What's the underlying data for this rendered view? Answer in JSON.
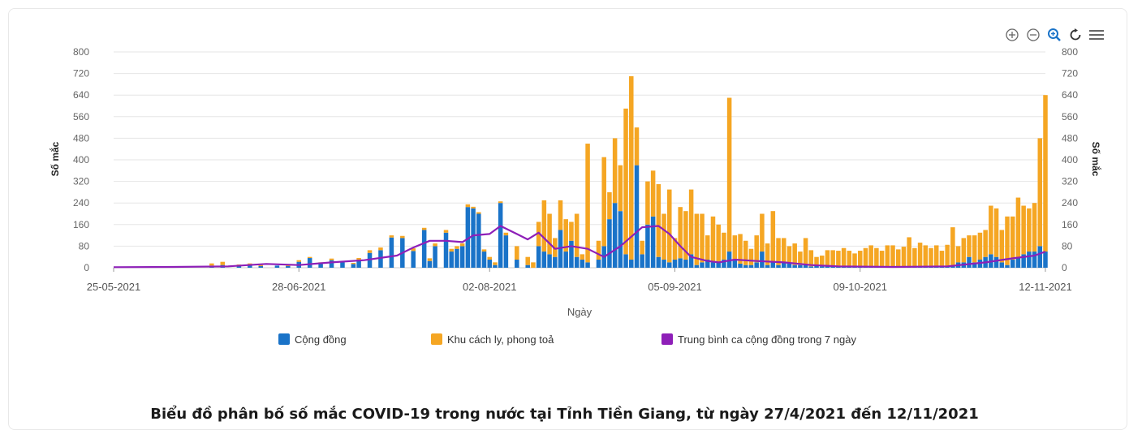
{
  "caption": "Biểu đồ phân bố số mắc COVID-19 trong nước tại Tỉnh Tiền Giang, từ ngày 27/4/2021 đến 12/11/2021",
  "toolbar": {
    "icons": [
      "zoom-in-icon",
      "zoom-out-icon",
      "magnifier-zoom-icon",
      "reset-icon",
      "menu-icon"
    ]
  },
  "chart_data": {
    "type": "bar",
    "x_label": "Ngày",
    "y_label_left": "Số mắc",
    "y_label_right": "Số mắc",
    "ylim": [
      0,
      800
    ],
    "y_ticks": [
      0,
      80,
      160,
      240,
      320,
      400,
      480,
      560,
      640,
      720,
      800
    ],
    "x_range": [
      "2021-05-25",
      "2021-11-12"
    ],
    "x_ticks": [
      "25-05-2021",
      "28-06-2021",
      "02-08-2021",
      "05-09-2021",
      "09-10-2021",
      "12-11-2021"
    ],
    "grid": true,
    "legend_position": "bottom",
    "series": [
      {
        "name": "Cộng đồng",
        "kind": "bar",
        "stack": "cases",
        "color": "#1a73c8"
      },
      {
        "name": "Khu cách ly, phong toả",
        "kind": "bar",
        "stack": "cases",
        "color": "#f5a623"
      },
      {
        "name": "Trung bình ca cộng đồng trong 7 ngày",
        "kind": "line",
        "color": "#8e1fb8"
      }
    ],
    "bars": [
      [
        "2021-06-12",
        8,
        8
      ],
      [
        "2021-06-14",
        10,
        12
      ],
      [
        "2021-06-17",
        6,
        6
      ],
      [
        "2021-06-19",
        10,
        6
      ],
      [
        "2021-06-21",
        6,
        4
      ],
      [
        "2021-06-24",
        8,
        0
      ],
      [
        "2021-06-26",
        6,
        4
      ],
      [
        "2021-06-28",
        22,
        6
      ],
      [
        "2021-06-30",
        36,
        4
      ],
      [
        "2021-07-02",
        14,
        6
      ],
      [
        "2021-07-04",
        28,
        6
      ],
      [
        "2021-07-06",
        20,
        4
      ],
      [
        "2021-07-08",
        14,
        4
      ],
      [
        "2021-07-09",
        30,
        6
      ],
      [
        "2021-07-11",
        55,
        10
      ],
      [
        "2021-07-13",
        65,
        10
      ],
      [
        "2021-07-15",
        112,
        8
      ],
      [
        "2021-07-17",
        110,
        8
      ],
      [
        "2021-07-19",
        62,
        10
      ],
      [
        "2021-07-21",
        140,
        8
      ],
      [
        "2021-07-22",
        25,
        10
      ],
      [
        "2021-07-23",
        80,
        10
      ],
      [
        "2021-07-25",
        130,
        10
      ],
      [
        "2021-07-26",
        60,
        10
      ],
      [
        "2021-07-27",
        70,
        10
      ],
      [
        "2021-07-28",
        80,
        10
      ],
      [
        "2021-07-29",
        225,
        10
      ],
      [
        "2021-07-30",
        220,
        6
      ],
      [
        "2021-07-31",
        200,
        6
      ],
      [
        "2021-08-01",
        60,
        8
      ],
      [
        "2021-08-02",
        30,
        10
      ],
      [
        "2021-08-03",
        10,
        10
      ],
      [
        "2021-08-04",
        240,
        6
      ],
      [
        "2021-08-05",
        120,
        10
      ],
      [
        "2021-08-07",
        30,
        50
      ],
      [
        "2021-08-09",
        10,
        30
      ],
      [
        "2021-08-10",
        0,
        20
      ],
      [
        "2021-08-11",
        80,
        90
      ],
      [
        "2021-08-12",
        60,
        190
      ],
      [
        "2021-08-13",
        50,
        150
      ],
      [
        "2021-08-14",
        40,
        70
      ],
      [
        "2021-08-15",
        140,
        110
      ],
      [
        "2021-08-16",
        60,
        120
      ],
      [
        "2021-08-17",
        100,
        70
      ],
      [
        "2021-08-18",
        40,
        160
      ],
      [
        "2021-08-19",
        30,
        20
      ],
      [
        "2021-08-20",
        20,
        440
      ],
      [
        "2021-08-22",
        30,
        70
      ],
      [
        "2021-08-23",
        80,
        330
      ],
      [
        "2021-08-24",
        180,
        100
      ],
      [
        "2021-08-25",
        240,
        240
      ],
      [
        "2021-08-26",
        210,
        170
      ],
      [
        "2021-08-27",
        50,
        540
      ],
      [
        "2021-08-28",
        30,
        680
      ],
      [
        "2021-08-29",
        380,
        140
      ],
      [
        "2021-08-30",
        50,
        50
      ],
      [
        "2021-08-31",
        160,
        160
      ],
      [
        "2021-09-01",
        190,
        170
      ],
      [
        "2021-09-02",
        40,
        270
      ],
      [
        "2021-09-03",
        30,
        170
      ],
      [
        "2021-09-04",
        20,
        270
      ],
      [
        "2021-09-05",
        30,
        80
      ],
      [
        "2021-09-06",
        35,
        190
      ],
      [
        "2021-09-07",
        30,
        180
      ],
      [
        "2021-09-08",
        50,
        240
      ],
      [
        "2021-09-09",
        10,
        190
      ],
      [
        "2021-09-10",
        20,
        180
      ],
      [
        "2021-09-11",
        30,
        90
      ],
      [
        "2021-09-12",
        20,
        170
      ],
      [
        "2021-09-13",
        20,
        140
      ],
      [
        "2021-09-14",
        30,
        100
      ],
      [
        "2021-09-15",
        60,
        570
      ],
      [
        "2021-09-16",
        30,
        90
      ],
      [
        "2021-09-17",
        15,
        110
      ],
      [
        "2021-09-18",
        10,
        90
      ],
      [
        "2021-09-19",
        10,
        60
      ],
      [
        "2021-09-20",
        20,
        100
      ],
      [
        "2021-09-21",
        60,
        140
      ],
      [
        "2021-09-22",
        10,
        80
      ],
      [
        "2021-09-23",
        20,
        190
      ],
      [
        "2021-09-24",
        10,
        100
      ],
      [
        "2021-09-25",
        20,
        90
      ],
      [
        "2021-09-26",
        20,
        60
      ],
      [
        "2021-09-27",
        10,
        80
      ],
      [
        "2021-09-28",
        10,
        50
      ],
      [
        "2021-09-29",
        10,
        100
      ],
      [
        "2021-09-30",
        5,
        60
      ],
      [
        "2021-10-01",
        10,
        30
      ],
      [
        "2021-10-02",
        5,
        40
      ],
      [
        "2021-10-03",
        5,
        60
      ],
      [
        "2021-10-04",
        5,
        60
      ],
      [
        "2021-10-05",
        3,
        60
      ],
      [
        "2021-10-06",
        3,
        70
      ],
      [
        "2021-10-07",
        3,
        60
      ],
      [
        "2021-10-08",
        3,
        50
      ],
      [
        "2021-10-09",
        3,
        60
      ],
      [
        "2021-10-10",
        3,
        70
      ],
      [
        "2021-10-11",
        3,
        80
      ],
      [
        "2021-10-12",
        3,
        70
      ],
      [
        "2021-10-13",
        3,
        60
      ],
      [
        "2021-10-14",
        3,
        80
      ],
      [
        "2021-10-15",
        3,
        80
      ],
      [
        "2021-10-16",
        3,
        65
      ],
      [
        "2021-10-17",
        3,
        75
      ],
      [
        "2021-10-18",
        3,
        110
      ],
      [
        "2021-10-19",
        3,
        70
      ],
      [
        "2021-10-20",
        3,
        90
      ],
      [
        "2021-10-21",
        3,
        80
      ],
      [
        "2021-10-22",
        3,
        70
      ],
      [
        "2021-10-23",
        3,
        80
      ],
      [
        "2021-10-24",
        3,
        60
      ],
      [
        "2021-10-25",
        5,
        80
      ],
      [
        "2021-10-26",
        10,
        140
      ],
      [
        "2021-10-27",
        20,
        60
      ],
      [
        "2021-10-28",
        20,
        90
      ],
      [
        "2021-10-29",
        40,
        80
      ],
      [
        "2021-10-30",
        20,
        100
      ],
      [
        "2021-10-31",
        30,
        100
      ],
      [
        "2021-11-01",
        40,
        100
      ],
      [
        "2021-11-02",
        50,
        180
      ],
      [
        "2021-11-03",
        40,
        180
      ],
      [
        "2021-11-04",
        20,
        120
      ],
      [
        "2021-11-05",
        10,
        180
      ],
      [
        "2021-11-06",
        30,
        160
      ],
      [
        "2021-11-07",
        40,
        220
      ],
      [
        "2021-11-08",
        50,
        180
      ],
      [
        "2021-11-09",
        60,
        160
      ],
      [
        "2021-11-10",
        60,
        180
      ],
      [
        "2021-11-11",
        80,
        400
      ],
      [
        "2021-11-12",
        60,
        580
      ]
    ],
    "avg_line": [
      [
        "2021-05-25",
        2
      ],
      [
        "2021-06-05",
        3
      ],
      [
        "2021-06-15",
        5
      ],
      [
        "2021-06-22",
        14
      ],
      [
        "2021-06-28",
        10
      ],
      [
        "2021-07-04",
        20
      ],
      [
        "2021-07-10",
        28
      ],
      [
        "2021-07-16",
        45
      ],
      [
        "2021-07-19",
        75
      ],
      [
        "2021-07-22",
        100
      ],
      [
        "2021-07-25",
        100
      ],
      [
        "2021-07-28",
        95
      ],
      [
        "2021-07-30",
        120
      ],
      [
        "2021-08-02",
        125
      ],
      [
        "2021-08-04",
        155
      ],
      [
        "2021-08-07",
        125
      ],
      [
        "2021-08-09",
        105
      ],
      [
        "2021-08-11",
        130
      ],
      [
        "2021-08-14",
        70
      ],
      [
        "2021-08-17",
        80
      ],
      [
        "2021-08-20",
        70
      ],
      [
        "2021-08-23",
        40
      ],
      [
        "2021-08-26",
        80
      ],
      [
        "2021-08-30",
        150
      ],
      [
        "2021-09-02",
        155
      ],
      [
        "2021-09-04",
        125
      ],
      [
        "2021-09-06",
        80
      ],
      [
        "2021-09-08",
        40
      ],
      [
        "2021-09-11",
        25
      ],
      [
        "2021-09-13",
        20
      ],
      [
        "2021-09-16",
        30
      ],
      [
        "2021-09-20",
        25
      ],
      [
        "2021-09-25",
        20
      ],
      [
        "2021-09-30",
        10
      ],
      [
        "2021-10-05",
        5
      ],
      [
        "2021-10-15",
        3
      ],
      [
        "2021-10-25",
        5
      ],
      [
        "2021-11-01",
        20
      ],
      [
        "2021-11-06",
        35
      ],
      [
        "2021-11-10",
        45
      ],
      [
        "2021-11-12",
        60
      ]
    ]
  }
}
